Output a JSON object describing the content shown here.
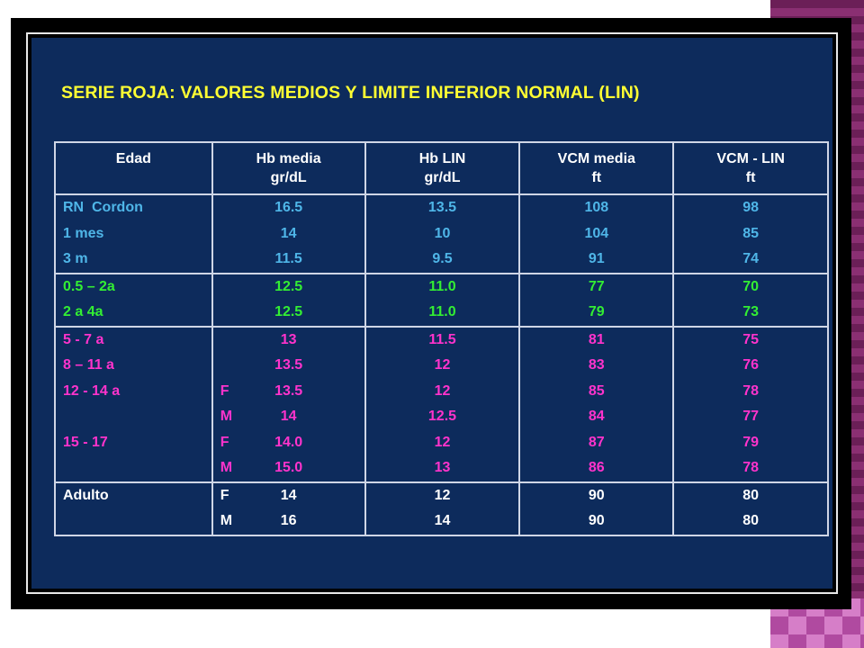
{
  "title": "SERIE ROJA: VALORES MEDIOS Y LIMITE INFERIOR NORMAL (LIN)",
  "headers": [
    [
      "Edad"
    ],
    [
      "Hb media",
      "gr/dL"
    ],
    [
      "Hb LIN",
      "gr/dL"
    ],
    [
      "VCM media",
      "ft"
    ],
    [
      "VCM - LIN",
      "ft"
    ]
  ],
  "groups": [
    {
      "color": "#4fb6e8",
      "rows": [
        {
          "age": "RN  Cordon",
          "sex": "",
          "hb": "16.5",
          "hblin": "13.5",
          "vcm": "108",
          "vcmlin": "98"
        },
        {
          "age": "1 mes",
          "sex": "",
          "hb": "14",
          "hblin": "10",
          "vcm": "104",
          "vcmlin": "85"
        },
        {
          "age": "3 m",
          "sex": "",
          "hb": "11.5",
          "hblin": "9.5",
          "vcm": "91",
          "vcmlin": "74"
        }
      ]
    },
    {
      "color": "#33ee33",
      "rows": [
        {
          "age": "0.5 – 2a",
          "sex": "",
          "hb": "12.5",
          "hblin": "11.0",
          "vcm": "77",
          "vcmlin": "70"
        },
        {
          "age": "2 a 4a",
          "sex": "",
          "hb": "12.5",
          "hblin": "11.0",
          "vcm": "79",
          "vcmlin": "73"
        }
      ]
    },
    {
      "color": "#ff33cc",
      "rows": [
        {
          "age": "5 - 7 a",
          "sex": "",
          "hb": "13",
          "hblin": "11.5",
          "vcm": "81",
          "vcmlin": "75"
        },
        {
          "age": "8 – 11 a",
          "sex": "",
          "hb": "13.5",
          "hblin": "12",
          "vcm": "83",
          "vcmlin": "76"
        },
        {
          "age": "12 - 14 a",
          "sex": "F",
          "hb": "13.5",
          "hblin": "12",
          "vcm": "85",
          "vcmlin": "78"
        },
        {
          "age": "",
          "sex": "M",
          "hb": "14",
          "hblin": "12.5",
          "vcm": "84",
          "vcmlin": "77"
        },
        {
          "age": "15 - 17",
          "sex": "F",
          "hb": "14.0",
          "hblin": "12",
          "vcm": "87",
          "vcmlin": "79"
        },
        {
          "age": "",
          "sex": "M",
          "hb": "15.0",
          "hblin": "13",
          "vcm": "86",
          "vcmlin": "78"
        }
      ]
    },
    {
      "color": "#ffffff",
      "rows": [
        {
          "age": "Adulto",
          "sex": "F",
          "hb": "14",
          "hblin": "12",
          "vcm": "90",
          "vcmlin": "80"
        },
        {
          "age": "",
          "sex": "M",
          "hb": "16",
          "hblin": "14",
          "vcm": "90",
          "vcmlin": "80"
        }
      ]
    }
  ]
}
